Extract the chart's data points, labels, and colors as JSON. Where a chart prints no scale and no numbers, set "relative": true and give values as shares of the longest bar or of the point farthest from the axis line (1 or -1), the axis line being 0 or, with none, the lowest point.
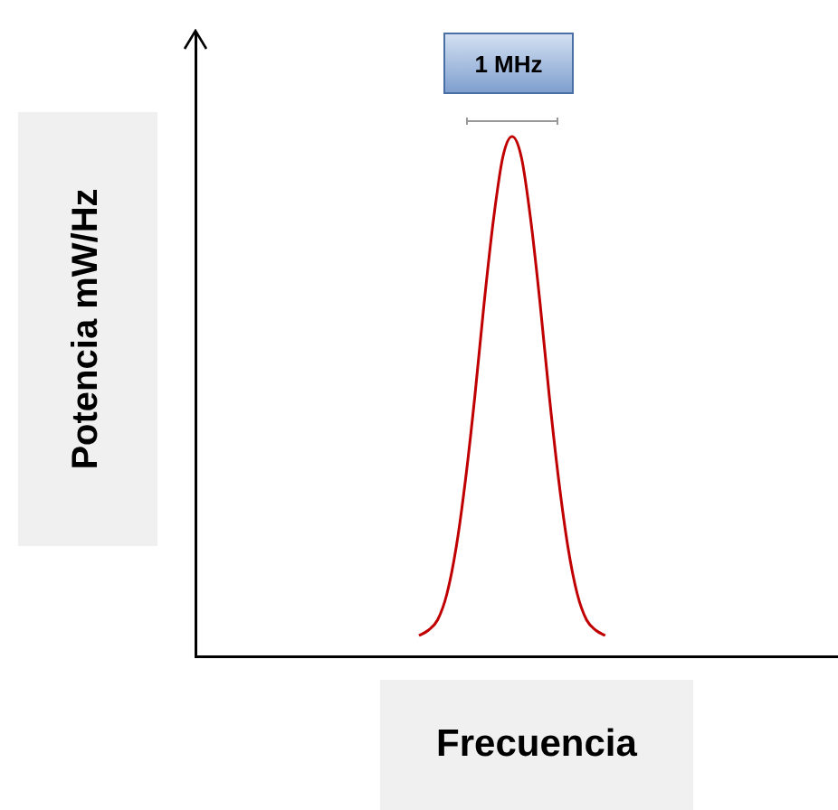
{
  "chart_data": {
    "type": "line",
    "relative": true,
    "xlabel": "Frecuencia",
    "ylabel": "Potencia mW/Hz",
    "annotations": [
      "1 MHz"
    ],
    "marker": "none",
    "legend": false,
    "grid": false,
    "categories": [
      null,
      null,
      null,
      null,
      null,
      null,
      null,
      null,
      null,
      null,
      null,
      null,
      null,
      null,
      null,
      null,
      null,
      null,
      null,
      null,
      null,
      null,
      null,
      null,
      null,
      null,
      null,
      null,
      null,
      null,
      null,
      null,
      null,
      null,
      null,
      null,
      null,
      null,
      null,
      null,
      null,
      null,
      null,
      null,
      null,
      null,
      null,
      null,
      null,
      null,
      null,
      null,
      null,
      null,
      null,
      null,
      null,
      null,
      null,
      null,
      null,
      null,
      null,
      null,
      null,
      null,
      null,
      null,
      null,
      null
    ],
    "series": [
      {
        "color": "#c00000",
        "values": [
          null,
          null,
          null,
          null,
          null,
          null,
          null,
          null,
          null,
          null,
          null,
          null,
          null,
          null,
          null,
          null,
          null,
          null,
          null,
          null,
          null,
          null,
          null,
          null,
          0.04,
          0.05,
          0.07,
          0.12,
          0.21,
          0.34,
          0.5,
          0.68,
          0.84,
          0.96,
          1,
          0.96,
          0.84,
          0.68,
          0.5,
          0.34,
          0.21,
          0.12,
          0.07,
          0.05,
          0.04,
          null,
          null,
          null,
          null,
          null,
          null,
          null,
          null,
          null,
          null,
          null,
          null,
          null,
          null,
          null,
          null,
          null,
          null,
          null,
          null,
          null,
          null,
          null,
          null,
          null
        ]
      }
    ]
  }
}
